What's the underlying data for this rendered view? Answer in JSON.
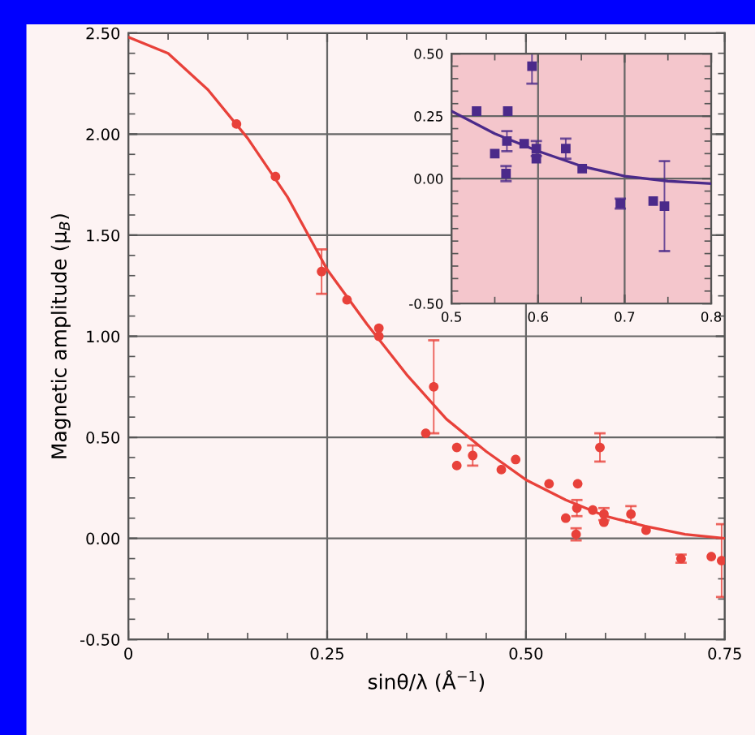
{
  "chart_data": [
    {
      "type": "scatter",
      "xlabel": "sinθ/λ (Å$^{−1}$)",
      "ylabel": "Magnetic amplitude (μ$_{B}$)",
      "xlim": [
        0,
        0.75
      ],
      "ylim": [
        -0.5,
        2.5
      ],
      "xticks": [
        {
          "value": 0,
          "label": "0"
        },
        {
          "value": 0.05,
          "label": null
        },
        {
          "value": 0.1,
          "label": null
        },
        {
          "value": 0.15,
          "label": null
        },
        {
          "value": 0.2,
          "label": null
        },
        {
          "value": 0.25,
          "label": "0.25"
        },
        {
          "value": 0.3,
          "label": null
        },
        {
          "value": 0.35,
          "label": null
        },
        {
          "value": 0.4,
          "label": null
        },
        {
          "value": 0.45,
          "label": null
        },
        {
          "value": 0.5,
          "label": "0.50"
        },
        {
          "value": 0.55,
          "label": null
        },
        {
          "value": 0.6,
          "label": null
        },
        {
          "value": 0.65,
          "label": null
        },
        {
          "value": 0.7,
          "label": null
        },
        {
          "value": 0.75,
          "label": "0.75"
        }
      ],
      "yticks": [
        {
          "value": -0.5,
          "label": "-0.50"
        },
        {
          "value": -0.4,
          "label": null
        },
        {
          "value": -0.3,
          "label": null
        },
        {
          "value": -0.2,
          "label": null
        },
        {
          "value": -0.1,
          "label": null
        },
        {
          "value": 0,
          "label": "0.00"
        },
        {
          "value": 0.1,
          "label": null
        },
        {
          "value": 0.2,
          "label": null
        },
        {
          "value": 0.3,
          "label": null
        },
        {
          "value": 0.4,
          "label": null
        },
        {
          "value": 0.5,
          "label": "0.50"
        },
        {
          "value": 0.6,
          "label": null
        },
        {
          "value": 0.7,
          "label": null
        },
        {
          "value": 0.8,
          "label": null
        },
        {
          "value": 0.9,
          "label": null
        },
        {
          "value": 1.0,
          "label": "1.00"
        },
        {
          "value": 1.1,
          "label": null
        },
        {
          "value": 1.2,
          "label": null
        },
        {
          "value": 1.3,
          "label": null
        },
        {
          "value": 1.4,
          "label": null
        },
        {
          "value": 1.5,
          "label": "1.50"
        },
        {
          "value": 1.6,
          "label": null
        },
        {
          "value": 1.7,
          "label": null
        },
        {
          "value": 1.8,
          "label": null
        },
        {
          "value": 1.9,
          "label": null
        },
        {
          "value": 2.0,
          "label": "2.00"
        },
        {
          "value": 2.1,
          "label": null
        },
        {
          "value": 2.2,
          "label": null
        },
        {
          "value": 2.3,
          "label": null
        },
        {
          "value": 2.4,
          "label": null
        },
        {
          "value": 2.5,
          "label": "2.50"
        }
      ],
      "grid": true,
      "series": [
        {
          "marker": "circle",
          "color": "#e8413a",
          "x": [
            0.136,
            0.185,
            0.243,
            0.275,
            0.315,
            0.315,
            0.374,
            0.384,
            0.413,
            0.413,
            0.433,
            0.469,
            0.487,
            0.529,
            0.55,
            0.564,
            0.563,
            0.565,
            0.584,
            0.593,
            0.598,
            0.598,
            0.632,
            0.651,
            0.695,
            0.733,
            0.746
          ],
          "values": [
            2.05,
            1.79,
            1.32,
            1.18,
            1.04,
            1.0,
            0.52,
            0.75,
            0.45,
            0.36,
            0.41,
            0.34,
            0.39,
            0.27,
            0.1,
            0.15,
            0.02,
            0.27,
            0.14,
            0.45,
            0.12,
            0.08,
            0.12,
            0.04,
            -0.1,
            -0.09,
            -0.11
          ],
          "errors": [
            null,
            null,
            0.11,
            null,
            null,
            null,
            null,
            0.23,
            null,
            null,
            0.05,
            null,
            null,
            null,
            null,
            0.04,
            0.03,
            null,
            null,
            0.07,
            0.03,
            null,
            0.04,
            null,
            0.02,
            null,
            [
              -0.29,
              0.07
            ]
          ]
        },
        {
          "type": "line",
          "marker": "none",
          "color": "#e8413a",
          "x": [
            0,
            0.05,
            0.1,
            0.15,
            0.2,
            0.25,
            0.3,
            0.35,
            0.4,
            0.45,
            0.5,
            0.55,
            0.6,
            0.65,
            0.7,
            0.75
          ],
          "values": [
            2.48,
            2.4,
            2.22,
            1.98,
            1.69,
            1.33,
            1.06,
            0.81,
            0.59,
            0.43,
            0.29,
            0.19,
            0.11,
            0.06,
            0.02,
            0.0
          ]
        }
      ]
    },
    {
      "type": "scatter",
      "xlim": [
        0.5,
        0.8
      ],
      "ylim": [
        -0.5,
        0.5
      ],
      "xticks": [
        {
          "value": 0.5,
          "label": "0.5"
        },
        {
          "value": 0.55,
          "label": null
        },
        {
          "value": 0.6,
          "label": "0.6"
        },
        {
          "value": 0.65,
          "label": null
        },
        {
          "value": 0.7,
          "label": "0.7"
        },
        {
          "value": 0.75,
          "label": null
        },
        {
          "value": 0.8,
          "label": "0.8"
        }
      ],
      "yticks": [
        {
          "value": -0.5,
          "label": "-0.50"
        },
        {
          "value": -0.45,
          "label": null
        },
        {
          "value": -0.4,
          "label": null
        },
        {
          "value": -0.35,
          "label": null
        },
        {
          "value": -0.3,
          "label": null
        },
        {
          "value": -0.25,
          "label": null
        },
        {
          "value": -0.2,
          "label": null
        },
        {
          "value": -0.15,
          "label": null
        },
        {
          "value": -0.1,
          "label": null
        },
        {
          "value": -0.05,
          "label": null
        },
        {
          "value": 0,
          "label": "0.00"
        },
        {
          "value": 0.05,
          "label": null
        },
        {
          "value": 0.1,
          "label": null
        },
        {
          "value": 0.15,
          "label": null
        },
        {
          "value": 0.2,
          "label": null
        },
        {
          "value": 0.25,
          "label": "0.25"
        },
        {
          "value": 0.3,
          "label": null
        },
        {
          "value": 0.35,
          "label": null
        },
        {
          "value": 0.4,
          "label": null
        },
        {
          "value": 0.45,
          "label": null
        },
        {
          "value": 0.5,
          "label": "0.50"
        }
      ],
      "grid": true,
      "series": [
        {
          "marker": "square",
          "color": "#4b2a8a",
          "x": [
            0.529,
            0.55,
            0.564,
            0.563,
            0.565,
            0.584,
            0.593,
            0.598,
            0.598,
            0.632,
            0.651,
            0.695,
            0.733,
            0.746
          ],
          "values": [
            0.27,
            0.1,
            0.15,
            0.02,
            0.27,
            0.14,
            0.45,
            0.12,
            0.08,
            0.12,
            0.04,
            -0.1,
            -0.09,
            -0.11
          ],
          "errors": [
            null,
            null,
            0.04,
            0.03,
            null,
            null,
            0.07,
            0.03,
            null,
            0.04,
            null,
            0.02,
            null,
            [
              -0.29,
              0.07
            ]
          ]
        },
        {
          "type": "line",
          "marker": "none",
          "color": "#4b2a8a",
          "x": [
            0.5,
            0.55,
            0.6,
            0.65,
            0.7,
            0.75,
            0.8
          ],
          "values": [
            0.27,
            0.18,
            0.11,
            0.05,
            0.01,
            -0.01,
            -0.02
          ]
        }
      ]
    }
  ]
}
